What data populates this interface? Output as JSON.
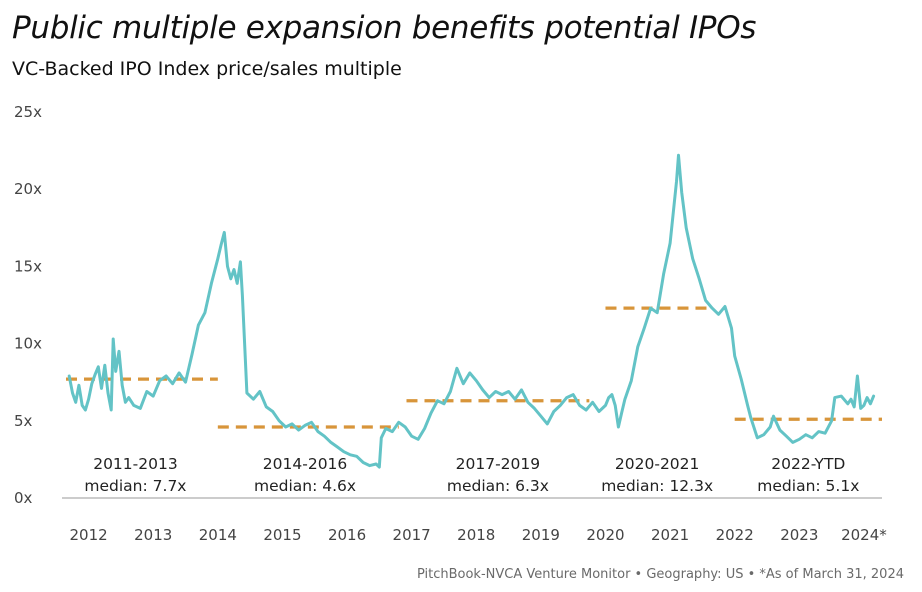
{
  "title": "Public multiple expansion benefits potential IPOs",
  "subtitle": "VC-Backed IPO Index price/sales multiple",
  "footer": "PitchBook-NVCA Venture Monitor  •  Geography: US  •  *As of March 31, 2024",
  "colors": {
    "line": "#63c3c6",
    "median": "#d8953a",
    "axis": "#999999"
  },
  "chart_data": {
    "type": "line",
    "title": "Public multiple expansion benefits potential IPOs",
    "subtitle": "VC-Backed IPO Index price/sales multiple",
    "xlabel": "",
    "ylabel": "",
    "y_ticks": [
      "0x",
      "5x",
      "10x",
      "15x",
      "20x",
      "25x"
    ],
    "ylim": [
      0,
      25
    ],
    "x_ticks": [
      "2012",
      "2013",
      "2014",
      "2015",
      "2016",
      "2017",
      "2018",
      "2019",
      "2020",
      "2021",
      "2022",
      "2023",
      "2024*"
    ],
    "xlim": [
      2011.65,
      2024.28
    ],
    "grid": false,
    "series": [
      {
        "values": [
          [
            2011.7,
            7.9
          ],
          [
            2011.75,
            6.8
          ],
          [
            2011.8,
            6.2
          ],
          [
            2011.85,
            7.3
          ],
          [
            2011.9,
            6.0
          ],
          [
            2011.95,
            5.7
          ],
          [
            2012.0,
            6.4
          ],
          [
            2012.05,
            7.4
          ],
          [
            2012.1,
            8.0
          ],
          [
            2012.15,
            8.5
          ],
          [
            2012.2,
            7.1
          ],
          [
            2012.25,
            8.6
          ],
          [
            2012.3,
            6.8
          ],
          [
            2012.35,
            5.7
          ],
          [
            2012.38,
            10.3
          ],
          [
            2012.42,
            8.2
          ],
          [
            2012.47,
            9.5
          ],
          [
            2012.52,
            7.3
          ],
          [
            2012.57,
            6.2
          ],
          [
            2012.62,
            6.5
          ],
          [
            2012.7,
            6.0
          ],
          [
            2012.8,
            5.8
          ],
          [
            2012.9,
            6.9
          ],
          [
            2013.0,
            6.6
          ],
          [
            2013.1,
            7.6
          ],
          [
            2013.2,
            7.9
          ],
          [
            2013.3,
            7.4
          ],
          [
            2013.4,
            8.1
          ],
          [
            2013.5,
            7.5
          ],
          [
            2013.6,
            9.3
          ],
          [
            2013.7,
            11.2
          ],
          [
            2013.8,
            12.0
          ],
          [
            2013.9,
            13.9
          ],
          [
            2014.0,
            15.5
          ],
          [
            2014.05,
            16.4
          ],
          [
            2014.1,
            17.2
          ],
          [
            2014.15,
            15.0
          ],
          [
            2014.2,
            14.2
          ],
          [
            2014.25,
            14.8
          ],
          [
            2014.3,
            13.9
          ],
          [
            2014.35,
            15.3
          ],
          [
            2014.38,
            13.1
          ],
          [
            2014.45,
            6.8
          ],
          [
            2014.55,
            6.4
          ],
          [
            2014.65,
            6.9
          ],
          [
            2014.75,
            5.9
          ],
          [
            2014.85,
            5.6
          ],
          [
            2014.95,
            5.0
          ],
          [
            2015.05,
            4.6
          ],
          [
            2015.15,
            4.8
          ],
          [
            2015.25,
            4.4
          ],
          [
            2015.35,
            4.7
          ],
          [
            2015.45,
            4.9
          ],
          [
            2015.55,
            4.3
          ],
          [
            2015.65,
            4.0
          ],
          [
            2015.75,
            3.6
          ],
          [
            2015.85,
            3.3
          ],
          [
            2015.95,
            3.0
          ],
          [
            2016.05,
            2.8
          ],
          [
            2016.15,
            2.7
          ],
          [
            2016.25,
            2.3
          ],
          [
            2016.35,
            2.1
          ],
          [
            2016.45,
            2.2
          ],
          [
            2016.5,
            2.0
          ],
          [
            2016.53,
            3.9
          ],
          [
            2016.6,
            4.5
          ],
          [
            2016.7,
            4.3
          ],
          [
            2016.8,
            4.9
          ],
          [
            2016.9,
            4.6
          ],
          [
            2017.0,
            4.0
          ],
          [
            2017.1,
            3.8
          ],
          [
            2017.2,
            4.5
          ],
          [
            2017.3,
            5.5
          ],
          [
            2017.4,
            6.3
          ],
          [
            2017.5,
            6.1
          ],
          [
            2017.6,
            6.9
          ],
          [
            2017.7,
            8.4
          ],
          [
            2017.8,
            7.4
          ],
          [
            2017.9,
            8.1
          ],
          [
            2018.0,
            7.6
          ],
          [
            2018.1,
            7.0
          ],
          [
            2018.2,
            6.5
          ],
          [
            2018.3,
            6.9
          ],
          [
            2018.4,
            6.7
          ],
          [
            2018.5,
            6.9
          ],
          [
            2018.6,
            6.4
          ],
          [
            2018.7,
            7.0
          ],
          [
            2018.8,
            6.2
          ],
          [
            2018.9,
            5.8
          ],
          [
            2019.0,
            5.3
          ],
          [
            2019.1,
            4.8
          ],
          [
            2019.2,
            5.6
          ],
          [
            2019.3,
            6.0
          ],
          [
            2019.4,
            6.5
          ],
          [
            2019.5,
            6.7
          ],
          [
            2019.6,
            6.0
          ],
          [
            2019.7,
            5.7
          ],
          [
            2019.8,
            6.2
          ],
          [
            2019.9,
            5.6
          ],
          [
            2020.0,
            6.0
          ],
          [
            2020.05,
            6.5
          ],
          [
            2020.1,
            6.7
          ],
          [
            2020.15,
            6.0
          ],
          [
            2020.2,
            4.6
          ],
          [
            2020.25,
            5.5
          ],
          [
            2020.3,
            6.4
          ],
          [
            2020.4,
            7.6
          ],
          [
            2020.5,
            9.8
          ],
          [
            2020.6,
            11.0
          ],
          [
            2020.7,
            12.3
          ],
          [
            2020.8,
            12.0
          ],
          [
            2020.9,
            14.5
          ],
          [
            2021.0,
            16.5
          ],
          [
            2021.05,
            18.5
          ],
          [
            2021.1,
            20.5
          ],
          [
            2021.13,
            22.2
          ],
          [
            2021.18,
            19.8
          ],
          [
            2021.25,
            17.5
          ],
          [
            2021.35,
            15.5
          ],
          [
            2021.45,
            14.2
          ],
          [
            2021.55,
            12.8
          ],
          [
            2021.65,
            12.3
          ],
          [
            2021.75,
            11.9
          ],
          [
            2021.85,
            12.4
          ],
          [
            2021.95,
            11.0
          ],
          [
            2022.0,
            9.2
          ],
          [
            2022.1,
            7.7
          ],
          [
            2022.2,
            6.0
          ],
          [
            2022.25,
            5.2
          ],
          [
            2022.35,
            3.9
          ],
          [
            2022.45,
            4.1
          ],
          [
            2022.55,
            4.6
          ],
          [
            2022.6,
            5.3
          ],
          [
            2022.7,
            4.4
          ],
          [
            2022.8,
            4.0
          ],
          [
            2022.9,
            3.6
          ],
          [
            2023.0,
            3.8
          ],
          [
            2023.1,
            4.1
          ],
          [
            2023.2,
            3.9
          ],
          [
            2023.3,
            4.3
          ],
          [
            2023.4,
            4.2
          ],
          [
            2023.5,
            5.0
          ],
          [
            2023.55,
            6.5
          ],
          [
            2023.65,
            6.6
          ],
          [
            2023.75,
            6.1
          ],
          [
            2023.8,
            6.4
          ],
          [
            2023.85,
            5.9
          ],
          [
            2023.9,
            7.9
          ],
          [
            2023.95,
            5.8
          ],
          [
            2024.0,
            6.0
          ],
          [
            2024.05,
            6.5
          ],
          [
            2024.1,
            6.1
          ],
          [
            2024.15,
            6.6
          ]
        ]
      }
    ],
    "medians": [
      {
        "period": "2011-2013",
        "label": "median: 7.7x",
        "value": 7.7,
        "x_start": 2011.65,
        "x_end": 2014.0
      },
      {
        "period": "2014-2016",
        "label": "median: 4.6x",
        "value": 4.6,
        "x_start": 2014.0,
        "x_end": 2016.8
      },
      {
        "period": "2017-2019",
        "label": "median: 6.3x",
        "value": 6.3,
        "x_start": 2016.92,
        "x_end": 2019.75
      },
      {
        "period": "2020-2021",
        "label": "median: 12.3x",
        "value": 12.3,
        "x_start": 2020.0,
        "x_end": 2021.6
      },
      {
        "period": "2022-YTD",
        "label": "median: 5.1x",
        "value": 5.1,
        "x_start": 2022.0,
        "x_end": 2024.28
      }
    ]
  }
}
